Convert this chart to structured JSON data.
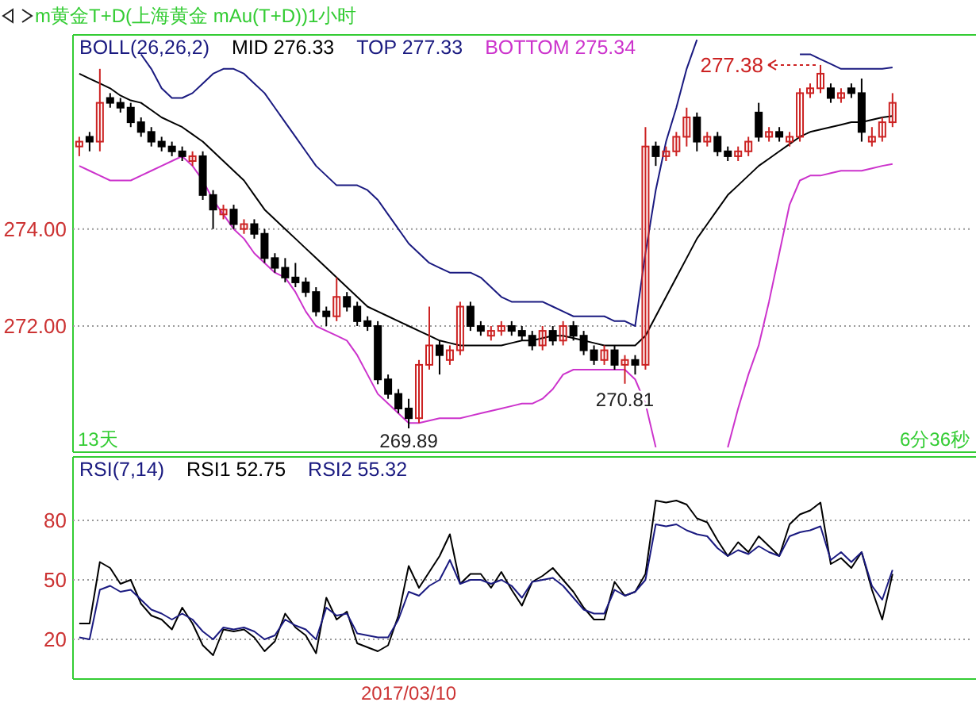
{
  "chart_data": [
    {
      "type": "candlestick",
      "title": "m黄金T+D(上海黄金 mAu(T+D))1小时",
      "legend_title": "BOLL(26,26,2)",
      "legend": "top left",
      "grid": "y",
      "tick_labels": "y",
      "categories": [
        null,
        null,
        null,
        null,
        null,
        null,
        null,
        null,
        null,
        null,
        null,
        null,
        null,
        null,
        null,
        null,
        null,
        null,
        null,
        null,
        null,
        null,
        null,
        null,
        null,
        null,
        null,
        null,
        null,
        null,
        null,
        null,
        null,
        null,
        null,
        null,
        null,
        null,
        null,
        null,
        null,
        null,
        null,
        null,
        null,
        null,
        null,
        null,
        null,
        null,
        null,
        null,
        null,
        null,
        null,
        null,
        null,
        null,
        null,
        null,
        null,
        null,
        null,
        null,
        null,
        null,
        null,
        null,
        null,
        null,
        null,
        null,
        null,
        null,
        null,
        null,
        null,
        null,
        null,
        null
      ],
      "ylim": [
        269.4,
        278.0
      ],
      "yticks": [
        {
          "value": 272,
          "label": "272.00"
        },
        {
          "value": 274,
          "label": "274.00"
        }
      ],
      "ohlc": [
        [
          275.7,
          275.9,
          275.5,
          275.8
        ],
        [
          275.9,
          276.0,
          275.6,
          275.8
        ],
        [
          275.8,
          277.3,
          275.6,
          276.6
        ],
        [
          276.7,
          276.8,
          276.5,
          276.6
        ],
        [
          276.6,
          276.7,
          276.4,
          276.5
        ],
        [
          276.5,
          276.6,
          276.1,
          276.2
        ],
        [
          276.2,
          276.3,
          275.9,
          276.0
        ],
        [
          276.0,
          276.1,
          275.7,
          275.8
        ],
        [
          275.8,
          275.9,
          275.6,
          275.7
        ],
        [
          275.7,
          275.8,
          275.5,
          275.6
        ],
        [
          275.6,
          275.7,
          275.4,
          275.5
        ],
        [
          275.4,
          275.6,
          275.3,
          275.5
        ],
        [
          275.5,
          275.6,
          274.6,
          274.7
        ],
        [
          274.7,
          274.8,
          274.0,
          274.4
        ],
        [
          274.3,
          274.5,
          274.2,
          274.4
        ],
        [
          274.4,
          274.5,
          274.0,
          274.1
        ],
        [
          274.0,
          274.2,
          273.9,
          274.1
        ],
        [
          274.1,
          274.2,
          273.8,
          273.9
        ],
        [
          273.9,
          274.0,
          273.3,
          273.4
        ],
        [
          273.4,
          273.5,
          273.1,
          273.2
        ],
        [
          273.2,
          273.4,
          272.9,
          273.0
        ],
        [
          273.0,
          273.3,
          272.8,
          272.9
        ],
        [
          272.9,
          273.0,
          272.6,
          272.7
        ],
        [
          272.7,
          272.8,
          272.2,
          272.3
        ],
        [
          272.3,
          272.4,
          272.0,
          272.2
        ],
        [
          272.2,
          273.0,
          272.1,
          272.6
        ],
        [
          272.6,
          272.7,
          272.3,
          272.4
        ],
        [
          272.4,
          272.5,
          272.0,
          272.1
        ],
        [
          272.1,
          272.2,
          271.9,
          272.0
        ],
        [
          272.0,
          272.1,
          270.8,
          270.9
        ],
        [
          270.9,
          271.0,
          270.5,
          270.6
        ],
        [
          270.6,
          270.7,
          270.2,
          270.3
        ],
        [
          270.3,
          270.5,
          269.89,
          270.1
        ],
        [
          270.1,
          271.3,
          270.0,
          271.2
        ],
        [
          271.2,
          272.4,
          271.1,
          271.6
        ],
        [
          271.6,
          271.7,
          271.0,
          271.4
        ],
        [
          271.3,
          271.6,
          271.2,
          271.5
        ],
        [
          271.5,
          272.5,
          271.4,
          272.4
        ],
        [
          272.4,
          272.5,
          271.9,
          272.0
        ],
        [
          272.0,
          272.1,
          271.8,
          271.9
        ],
        [
          271.8,
          272.0,
          271.7,
          271.9
        ],
        [
          271.9,
          272.1,
          271.8,
          272.0
        ],
        [
          272.0,
          272.1,
          271.8,
          271.9
        ],
        [
          271.9,
          272.0,
          271.7,
          271.8
        ],
        [
          271.8,
          271.9,
          271.5,
          271.6
        ],
        [
          271.6,
          272.0,
          271.5,
          271.9
        ],
        [
          271.9,
          272.0,
          271.6,
          271.7
        ],
        [
          271.7,
          272.1,
          271.6,
          272.0
        ],
        [
          272.0,
          272.1,
          271.7,
          271.8
        ],
        [
          271.8,
          271.9,
          271.4,
          271.5
        ],
        [
          271.5,
          271.6,
          271.2,
          271.3
        ],
        [
          271.3,
          271.6,
          271.2,
          271.5
        ],
        [
          271.5,
          271.6,
          271.1,
          271.2
        ],
        [
          271.2,
          271.4,
          270.81,
          271.3
        ],
        [
          271.3,
          271.4,
          271.0,
          271.2
        ],
        [
          271.2,
          276.1,
          271.1,
          275.7
        ],
        [
          275.7,
          275.8,
          275.3,
          275.5
        ],
        [
          275.5,
          275.7,
          275.4,
          275.6
        ],
        [
          275.6,
          276.0,
          275.5,
          275.9
        ],
        [
          275.9,
          276.5,
          275.7,
          276.3
        ],
        [
          276.3,
          276.4,
          275.6,
          275.8
        ],
        [
          275.8,
          276.0,
          275.7,
          275.9
        ],
        [
          275.9,
          276.0,
          275.5,
          275.6
        ],
        [
          275.6,
          275.7,
          275.4,
          275.5
        ],
        [
          275.5,
          275.7,
          275.4,
          275.6
        ],
        [
          275.6,
          275.9,
          275.5,
          275.8
        ],
        [
          276.4,
          276.6,
          275.8,
          275.9
        ],
        [
          275.9,
          276.1,
          275.8,
          276.0
        ],
        [
          276.0,
          276.1,
          275.8,
          275.9
        ],
        [
          275.8,
          276.0,
          275.7,
          275.9
        ],
        [
          275.9,
          276.9,
          275.8,
          276.8
        ],
        [
          276.8,
          277.0,
          276.7,
          276.9
        ],
        [
          276.9,
          277.38,
          276.8,
          277.2
        ],
        [
          276.9,
          277.0,
          276.6,
          276.7
        ],
        [
          276.7,
          276.9,
          276.6,
          276.8
        ],
        [
          276.9,
          277.0,
          276.7,
          276.8
        ],
        [
          276.8,
          277.1,
          275.8,
          276.0
        ],
        [
          275.8,
          276.1,
          275.7,
          275.9
        ],
        [
          275.9,
          276.3,
          275.8,
          276.2
        ],
        [
          276.2,
          276.8,
          276.1,
          276.6
        ]
      ],
      "colors": [
        "#cc2222",
        "#000000",
        "#cc2222",
        "#000000",
        "#000000",
        "#000000",
        "#000000",
        "#000000",
        "#000000",
        "#000000",
        "#000000",
        "#cc2222",
        "#000000",
        "#000000",
        "#cc2222",
        "#000000",
        "#cc2222",
        "#000000",
        "#000000",
        "#000000",
        "#000000",
        "#000000",
        "#000000",
        "#000000",
        "#000000",
        "#cc2222",
        "#000000",
        "#000000",
        "#000000",
        "#000000",
        "#000000",
        "#000000",
        "#000000",
        "#cc2222",
        "#cc2222",
        "#000000",
        "#cc2222",
        "#cc2222",
        "#000000",
        "#000000",
        "#cc2222",
        "#cc2222",
        "#000000",
        "#000000",
        "#000000",
        "#cc2222",
        "#000000",
        "#cc2222",
        "#000000",
        "#000000",
        "#000000",
        "#cc2222",
        "#000000",
        "#cc2222",
        "#000000",
        "#cc2222",
        "#000000",
        "#cc2222",
        "#cc2222",
        "#cc2222",
        "#000000",
        "#cc2222",
        "#000000",
        "#000000",
        "#cc2222",
        "#cc2222",
        "#000000",
        "#cc2222",
        "#000000",
        "#cc2222",
        "#cc2222",
        "#cc2222",
        "#cc2222",
        "#000000",
        "#cc2222",
        "#000000",
        "#000000",
        "#cc2222",
        "#cc2222",
        "#cc2222"
      ],
      "series": [
        {
          "name": "MID 276.33",
          "type": "line",
          "color": "#000000",
          "values": [
            277.2,
            277.1,
            277.0,
            276.9,
            276.75,
            276.65,
            276.6,
            276.45,
            276.3,
            276.2,
            276.1,
            275.95,
            275.8,
            275.6,
            275.4,
            275.2,
            275.0,
            274.7,
            274.4,
            274.2,
            274.0,
            273.8,
            273.6,
            273.4,
            273.2,
            273.0,
            272.8,
            272.6,
            272.4,
            272.3,
            272.2,
            272.1,
            272.0,
            271.9,
            271.8,
            271.7,
            271.65,
            271.6,
            271.6,
            271.6,
            271.6,
            271.6,
            271.65,
            271.7,
            271.7,
            271.75,
            271.8,
            271.8,
            271.75,
            271.7,
            271.65,
            271.6,
            271.6,
            271.6,
            271.6,
            271.8,
            272.2,
            272.6,
            273.0,
            273.4,
            273.8,
            274.1,
            274.4,
            274.7,
            274.9,
            275.1,
            275.3,
            275.45,
            275.6,
            275.75,
            275.9,
            276.0,
            276.05,
            276.1,
            276.15,
            276.2,
            276.2,
            276.25,
            276.3,
            276.33
          ]
        },
        {
          "name": "TOP 277.33",
          "type": "line",
          "color": "#1a1a80",
          "values": [
            null,
            null,
            null,
            null,
            null,
            null,
            277.6,
            277.3,
            276.9,
            276.7,
            276.7,
            276.8,
            277.0,
            277.2,
            277.3,
            277.3,
            277.2,
            277.0,
            276.8,
            276.5,
            276.2,
            275.9,
            275.6,
            275.3,
            275.1,
            274.9,
            274.9,
            274.9,
            274.8,
            274.6,
            274.3,
            274.0,
            273.7,
            273.5,
            273.3,
            273.2,
            273.1,
            273.1,
            273.1,
            273.0,
            272.8,
            272.6,
            272.5,
            272.5,
            272.5,
            272.5,
            272.4,
            272.3,
            272.2,
            272.2,
            272.2,
            272.2,
            272.1,
            272.1,
            272.0,
            273.5,
            274.8,
            275.8,
            276.5,
            277.3,
            277.9,
            null,
            null,
            null,
            null,
            null,
            null,
            null,
            null,
            null,
            277.6,
            277.6,
            277.5,
            277.4,
            277.3,
            277.3,
            277.3,
            277.3,
            277.3,
            277.33
          ]
        },
        {
          "name": "BOTTOM 275.34",
          "type": "line",
          "color": "#cc33cc",
          "values": [
            275.3,
            275.2,
            275.1,
            275.0,
            275.0,
            275.0,
            275.1,
            275.2,
            275.3,
            275.4,
            275.5,
            275.3,
            275.0,
            274.6,
            274.3,
            274.0,
            273.8,
            273.5,
            273.3,
            273.1,
            273.0,
            272.7,
            272.3,
            272.0,
            271.9,
            271.8,
            271.7,
            271.4,
            271.0,
            270.6,
            270.4,
            270.2,
            270.0,
            270.0,
            270.05,
            270.1,
            270.1,
            270.1,
            270.15,
            270.2,
            270.25,
            270.3,
            270.35,
            270.4,
            270.4,
            270.5,
            270.7,
            271.0,
            271.1,
            271.1,
            271.1,
            271.1,
            271.1,
            271.1,
            270.9,
            270.4,
            269.5,
            null,
            null,
            null,
            null,
            null,
            null,
            269.5,
            270.3,
            271.0,
            271.6,
            272.5,
            273.5,
            274.5,
            275.0,
            275.1,
            275.1,
            275.15,
            275.2,
            275.2,
            275.2,
            275.25,
            275.3,
            275.34
          ]
        }
      ],
      "annotations": [
        "13天",
        "6分36秒",
        {
          "text": "269.89",
          "y": 269.89
        },
        {
          "text": "270.81",
          "y": 270.81
        },
        "277.38"
      ]
    },
    {
      "type": "line",
      "legend_title": "RSI(7,14)",
      "legend": "top left",
      "grid": "y",
      "categories": [
        null,
        null,
        null,
        null,
        null,
        null,
        null,
        null,
        null,
        null,
        null,
        null,
        null,
        null,
        null,
        null,
        null,
        null,
        null,
        null,
        null,
        null,
        null,
        null,
        null,
        null,
        null,
        null,
        null,
        null,
        null,
        null,
        "2017/03/10",
        null,
        null,
        null,
        null,
        null,
        null,
        null,
        null,
        null,
        null,
        null,
        null,
        null,
        null,
        null,
        null,
        null,
        null,
        null,
        null,
        null,
        null,
        null,
        null,
        null,
        null,
        null,
        null,
        null,
        null,
        null,
        null,
        null,
        null,
        null,
        null,
        null,
        null,
        null,
        null,
        null,
        null,
        null,
        null,
        null,
        null,
        null
      ],
      "ylim": [
        0,
        112
      ],
      "yticks": [
        20,
        50,
        80
      ],
      "series": [
        {
          "name": "RSI1 52.75",
          "color": "#000000",
          "values": [
            28,
            28,
            59,
            56,
            48,
            50,
            38,
            32,
            30,
            25,
            36,
            28,
            17,
            12,
            25,
            24,
            25,
            21,
            14,
            19,
            33,
            26,
            22,
            13,
            41,
            30,
            34,
            18,
            16,
            14,
            17,
            32,
            57,
            46,
            54,
            62,
            73,
            48,
            53,
            53,
            46,
            54,
            45,
            37,
            49,
            52,
            56,
            50,
            44,
            36,
            30,
            30,
            49,
            42,
            44,
            53,
            90,
            89,
            90,
            88,
            81,
            79,
            70,
            62,
            69,
            64,
            72,
            67,
            62,
            78,
            83,
            85,
            89,
            58,
            61,
            56,
            64,
            45,
            30,
            53
          ]
        },
        {
          "name": "RSI2 55.32",
          "color": "#1a1a80",
          "values": [
            21,
            20,
            45,
            47,
            44,
            45,
            40,
            35,
            33,
            30,
            33,
            30,
            24,
            20,
            26,
            25,
            26,
            24,
            20,
            22,
            30,
            27,
            25,
            20,
            36,
            32,
            33,
            23,
            22,
            21,
            21,
            30,
            44,
            42,
            47,
            50,
            60,
            48,
            50,
            50,
            48,
            50,
            47,
            41,
            49,
            50,
            51,
            47,
            41,
            35,
            33,
            33,
            45,
            42,
            44,
            50,
            78,
            77,
            78,
            75,
            73,
            72,
            66,
            62,
            65,
            63,
            67,
            64,
            62,
            72,
            74,
            75,
            77,
            60,
            64,
            59,
            64,
            47,
            40,
            55
          ]
        }
      ]
    }
  ]
}
